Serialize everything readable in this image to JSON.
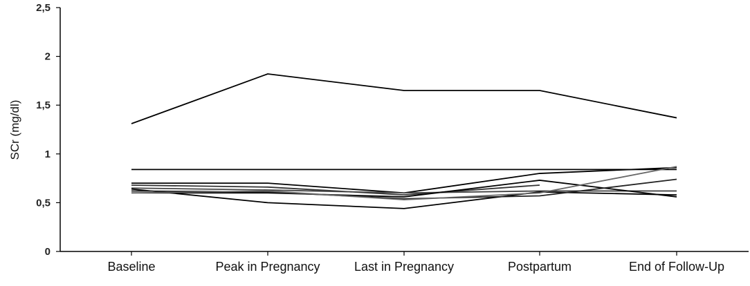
{
  "chart_data": {
    "type": "line",
    "title": "",
    "xlabel": "",
    "ylabel": "SCr (mg/dl)",
    "categories": [
      "Baseline",
      "Peak in Pregnancy",
      "Last in Pregnancy",
      "Postpartum",
      "End of Follow-Up"
    ],
    "ylim": [
      0,
      2.5
    ],
    "y_ticks": [
      "0",
      "0,5",
      "1",
      "1,5",
      "2",
      "2,5"
    ],
    "y_tick_values": [
      0,
      0.5,
      1,
      1.5,
      2,
      2.5
    ],
    "grid": false,
    "legend": "none",
    "series_color": "#000000",
    "series": [
      {
        "values": [
          1.31,
          1.82,
          1.65,
          1.65,
          1.37
        ],
        "color": "#000000"
      },
      {
        "values": [
          0.84,
          0.84,
          0.84,
          0.84,
          0.84
        ],
        "color": "#000000"
      },
      {
        "values": [
          0.7,
          0.7,
          0.6,
          0.8,
          0.86
        ],
        "color": "#000000"
      },
      {
        "values": [
          0.68,
          0.66,
          0.58,
          0.68,
          null
        ],
        "color": "#333333"
      },
      {
        "values": [
          0.65,
          0.63,
          0.6,
          0.62,
          0.62
        ],
        "color": "#444444"
      },
      {
        "values": [
          0.6,
          0.6,
          0.56,
          0.73,
          0.56
        ],
        "color": "#000000"
      },
      {
        "values": [
          0.64,
          0.5,
          0.44,
          0.61,
          0.58
        ],
        "color": "#000000"
      },
      {
        "values": [
          0.62,
          0.61,
          0.54,
          0.57,
          0.74
        ],
        "color": "#222222"
      },
      {
        "values": [
          0.6,
          0.62,
          0.53,
          0.6,
          0.87
        ],
        "color": "#666666"
      }
    ]
  }
}
